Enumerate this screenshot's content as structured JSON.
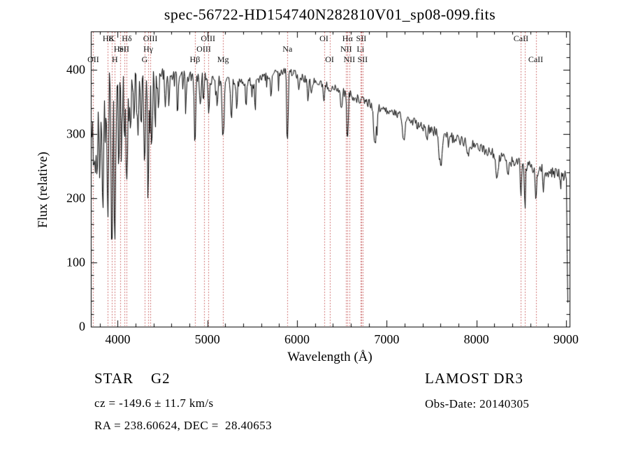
{
  "title": "spec-56722-HD154740N282810V01_sp08-099.fits",
  "annotations": {
    "class_label": "STAR    G2",
    "survey": "LAMOST DR3",
    "cz": "cz = -149.6 ± 11.7 km/s",
    "obs_date": "Obs-Date: 20140305",
    "ra_dec": "RA = 238.60624, DEC =  28.40653"
  },
  "chart_data": {
    "type": "line",
    "title": "spec-56722-HD154740N282810V01_sp08-099.fits",
    "xlabel": "Wavelength (Å)",
    "ylabel": "Flux (relative)",
    "xlim": [
      3700,
      9040
    ],
    "ylim": [
      0,
      460
    ],
    "xticks": [
      4000,
      5000,
      6000,
      7000,
      8000,
      9000
    ],
    "yticks": [
      0,
      100,
      200,
      300,
      400
    ],
    "x_minor_step": 200,
    "y_minor_step": 20,
    "grid": false,
    "legend": false,
    "colors": {
      "spectrum": "#000000",
      "axis": "#000000",
      "marker_line": "#c04a4a",
      "label_text": "#111111",
      "background": "#ffffff"
    },
    "continuum_points": [
      [
        3700,
        238
      ],
      [
        3720,
        330
      ],
      [
        3745,
        372
      ],
      [
        3800,
        380
      ],
      [
        3900,
        384
      ],
      [
        4000,
        381
      ],
      [
        4100,
        379
      ],
      [
        4200,
        384
      ],
      [
        4300,
        386
      ],
      [
        4400,
        388
      ],
      [
        4500,
        390
      ],
      [
        4600,
        392
      ],
      [
        4700,
        390
      ],
      [
        4800,
        389
      ],
      [
        4900,
        390
      ],
      [
        5000,
        386
      ],
      [
        5100,
        384
      ],
      [
        5200,
        382
      ],
      [
        5300,
        381
      ],
      [
        5400,
        381
      ],
      [
        5500,
        383
      ],
      [
        5600,
        386
      ],
      [
        5700,
        391
      ],
      [
        5800,
        397
      ],
      [
        5860,
        400
      ],
      [
        5950,
        396
      ],
      [
        6000,
        391
      ],
      [
        6100,
        386
      ],
      [
        6200,
        381
      ],
      [
        6300,
        376
      ],
      [
        6400,
        371
      ],
      [
        6500,
        366
      ],
      [
        6600,
        361
      ],
      [
        6700,
        353
      ],
      [
        6800,
        349
      ],
      [
        6900,
        341
      ],
      [
        7000,
        335
      ],
      [
        7100,
        330
      ],
      [
        7200,
        325
      ],
      [
        7300,
        318
      ],
      [
        7400,
        312
      ],
      [
        7500,
        306
      ],
      [
        7600,
        301
      ],
      [
        7700,
        296
      ],
      [
        7800,
        291
      ],
      [
        7900,
        286
      ],
      [
        8000,
        281
      ],
      [
        8100,
        275
      ],
      [
        8200,
        269
      ],
      [
        8300,
        263
      ],
      [
        8400,
        258
      ],
      [
        8500,
        253
      ],
      [
        8600,
        249
      ],
      [
        8700,
        245
      ],
      [
        8800,
        241
      ],
      [
        8900,
        237
      ],
      [
        9000,
        233
      ],
      [
        9008,
        229
      ],
      [
        9012,
        120
      ],
      [
        9016,
        36
      ]
    ],
    "absorption_features": [
      [
        3735,
        100,
        6
      ],
      [
        3750,
        130,
        5
      ],
      [
        3770,
        110,
        5
      ],
      [
        3798,
        140,
        5
      ],
      [
        3820,
        90,
        4
      ],
      [
        3835,
        180,
        5
      ],
      [
        3860,
        80,
        4
      ],
      [
        3889,
        200,
        5
      ],
      [
        3933,
        265,
        5
      ],
      [
        3968,
        235,
        5
      ],
      [
        4010,
        60,
        4
      ],
      [
        4045,
        70,
        4
      ],
      [
        4077,
        80,
        4
      ],
      [
        4101,
        150,
        6
      ],
      [
        4144,
        60,
        4
      ],
      [
        4180,
        50,
        4
      ],
      [
        4226,
        95,
        4
      ],
      [
        4260,
        60,
        4
      ],
      [
        4300,
        115,
        6
      ],
      [
        4340,
        145,
        5
      ],
      [
        4383,
        85,
        4
      ],
      [
        4415,
        55,
        4
      ],
      [
        4455,
        50,
        4
      ],
      [
        4531,
        45,
        4
      ],
      [
        4570,
        40,
        4
      ],
      [
        4668,
        55,
        4
      ],
      [
        4760,
        35,
        4
      ],
      [
        4861,
        95,
        5
      ],
      [
        4920,
        45,
        4
      ],
      [
        4957,
        35,
        4
      ],
      [
        5015,
        45,
        4
      ],
      [
        5110,
        35,
        4
      ],
      [
        5175,
        88,
        7
      ],
      [
        5269,
        60,
        5
      ],
      [
        5328,
        40,
        4
      ],
      [
        5430,
        35,
        4
      ],
      [
        5530,
        30,
        4
      ],
      [
        5710,
        30,
        4
      ],
      [
        5893,
        108,
        5
      ],
      [
        6020,
        25,
        4
      ],
      [
        6122,
        35,
        4
      ],
      [
        6160,
        25,
        4
      ],
      [
        6300,
        25,
        4
      ],
      [
        6495,
        30,
        4
      ],
      [
        6563,
        72,
        5
      ],
      [
        6870,
        55,
        12
      ],
      [
        7190,
        28,
        10
      ],
      [
        7450,
        20,
        6
      ],
      [
        7600,
        48,
        14
      ],
      [
        7900,
        22,
        8
      ],
      [
        8230,
        32,
        10
      ],
      [
        8350,
        20,
        6
      ],
      [
        8498,
        42,
        4
      ],
      [
        8542,
        58,
        4
      ],
      [
        8662,
        52,
        4
      ],
      [
        8750,
        20,
        5
      ]
    ],
    "noise_bands": [
      [
        4000,
        20
      ],
      [
        4600,
        13
      ],
      [
        5200,
        9
      ],
      [
        7000,
        7
      ],
      [
        8300,
        8
      ],
      [
        10000,
        10
      ]
    ],
    "noise_seed": 42,
    "spectral_lines": [
      {
        "name": "OII-3727",
        "label": "OII",
        "wavelength": 3727,
        "row": 2
      },
      {
        "name": "H8",
        "label": "H8",
        "wavelength": 3889,
        "row": 0
      },
      {
        "name": "CaII-K",
        "label": "K",
        "wavelength": 3933,
        "row": 0
      },
      {
        "name": "CaII-H",
        "label": "H",
        "wavelength": 3968,
        "row": 2
      },
      {
        "name": "HeI",
        "label": "HeI",
        "wavelength": 4026,
        "row": 1
      },
      {
        "name": "SII-4072",
        "label": "SII",
        "wavelength": 4072,
        "row": 1
      },
      {
        "name": "Hdelta",
        "label": "Hδ",
        "wavelength": 4101,
        "row": 0
      },
      {
        "name": "G-band",
        "label": "G",
        "wavelength": 4300,
        "row": 2
      },
      {
        "name": "Hgamma",
        "label": "Hγ",
        "wavelength": 4340,
        "row": 1
      },
      {
        "name": "OIII-4363",
        "label": "OIII",
        "wavelength": 4363,
        "row": 0
      },
      {
        "name": "Hbeta",
        "label": "Hβ",
        "wavelength": 4861,
        "row": 2
      },
      {
        "name": "OIII-4959",
        "label": "OIII",
        "wavelength": 4959,
        "row": 1
      },
      {
        "name": "OIII-5007",
        "label": "OIII",
        "wavelength": 5007,
        "row": 0
      },
      {
        "name": "Mg",
        "label": "Mg",
        "wavelength": 5175,
        "row": 2
      },
      {
        "name": "Na",
        "label": "Na",
        "wavelength": 5893,
        "row": 1
      },
      {
        "name": "OI-6300",
        "label": "OI",
        "wavelength": 6300,
        "row": 0
      },
      {
        "name": "OI-6363",
        "label": "OI",
        "wavelength": 6363,
        "row": 2
      },
      {
        "name": "NII-6548",
        "label": "NII",
        "wavelength": 6548,
        "row": 1
      },
      {
        "name": "Halpha",
        "label": "Hα",
        "wavelength": 6563,
        "row": 0
      },
      {
        "name": "NII-6583",
        "label": "NII",
        "wavelength": 6583,
        "row": 2
      },
      {
        "name": "Li",
        "label": "Li",
        "wavelength": 6707,
        "row": 1
      },
      {
        "name": "SII-6716",
        "label": "SII",
        "wavelength": 6716,
        "row": 0
      },
      {
        "name": "SII-6731",
        "label": "SII",
        "wavelength": 6731,
        "row": 2
      },
      {
        "name": "CaII-8498",
        "label": "CaII",
        "wavelength": 8498,
        "row": 0
      },
      {
        "name": "CaII-8542",
        "label": "",
        "wavelength": 8542,
        "row": 1
      },
      {
        "name": "CaII-8662",
        "label": "CaII",
        "wavelength": 8662,
        "row": 2
      }
    ]
  }
}
